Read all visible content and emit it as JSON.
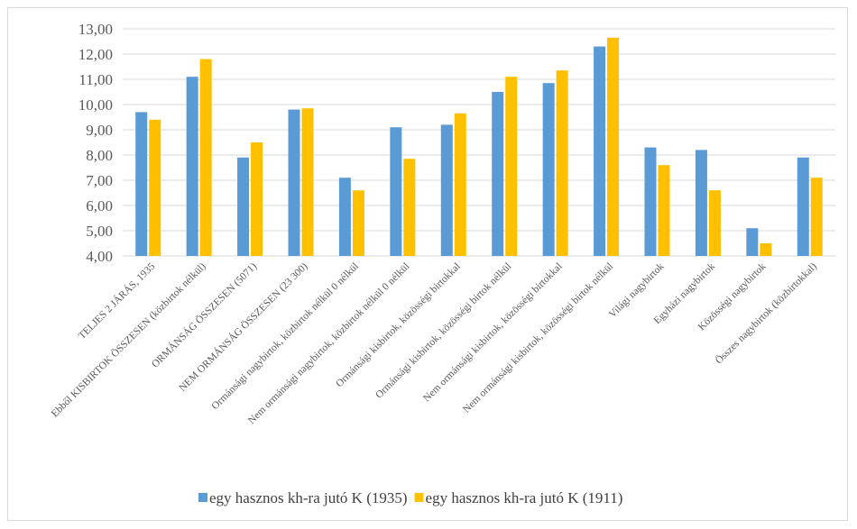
{
  "chart_data": {
    "type": "bar",
    "categories": [
      "TELJES 2 JÁRÁS, 1935",
      "Ebből KISBIRTOK ÖSSZESEN (közbirtok nélkül)",
      "ORMÁNSÁG ÖSSZESEN (5071)",
      "NEM ORMÁNSÁG ÖSSZESEN (23 300)",
      "Ormánsági nagybirtok, közbirtok nélkül 0 nélkül",
      "Nem ormánsági nagybirtok, közbirtok nélkül 0 nélkül",
      "Ormánsági kisbirtok, közösségi birtokkal",
      "Ormánsági kisbirtok, közösségi birtok nélkül",
      "Nem ormánsági kisbirtok, közösségi birtokkal",
      "Nem ormánsági kisbirtok, közösségi birtok nélkül",
      "Világi nagybirtok",
      "Egyházi nagybirtok",
      "Közösségi nagybirtok",
      "Összes nagybirtok (közbirtokkal)"
    ],
    "series": [
      {
        "name": "egy hasznos kh-ra jutó K (1935)",
        "color": "#5b9bd5",
        "values": [
          9.7,
          11.1,
          7.9,
          9.8,
          7.1,
          9.1,
          9.2,
          10.5,
          10.85,
          12.3,
          8.3,
          8.2,
          5.1,
          7.9
        ]
      },
      {
        "name": "egy hasznos kh-ra jutó K (1911)",
        "color": "#ffc000",
        "values": [
          9.4,
          11.8,
          8.5,
          9.85,
          6.6,
          7.85,
          9.65,
          11.1,
          11.35,
          12.65,
          7.6,
          6.6,
          4.5,
          7.1
        ]
      }
    ],
    "ylim": [
      4,
      13
    ],
    "yticks": [
      "4,00",
      "5,00",
      "6,00",
      "7,00",
      "8,00",
      "9,00",
      "10,00",
      "11,00",
      "12,00",
      "13,00"
    ],
    "grid": true,
    "legend": "bottom",
    "title": "",
    "xlabel": "",
    "ylabel": ""
  }
}
